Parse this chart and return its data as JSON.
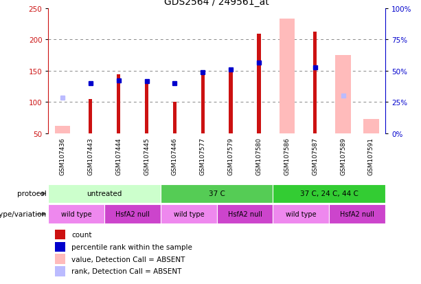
{
  "title": "GDS2564 / 249561_at",
  "samples": [
    "GSM107436",
    "GSM107443",
    "GSM107444",
    "GSM107445",
    "GSM107446",
    "GSM107577",
    "GSM107579",
    "GSM107580",
    "GSM107586",
    "GSM107587",
    "GSM107589",
    "GSM107591"
  ],
  "count_values": [
    null,
    105,
    144,
    133,
    100,
    148,
    152,
    209,
    null,
    212,
    null,
    null
  ],
  "rank_values": [
    null,
    130,
    135,
    133,
    130,
    148,
    152,
    163,
    null,
    155,
    null,
    null
  ],
  "absent_rank_dots": [
    107,
    null,
    null,
    null,
    null,
    null,
    null,
    null,
    null,
    null,
    110,
    null
  ],
  "absent_value_bars": [
    62,
    null,
    null,
    null,
    null,
    null,
    null,
    null,
    233,
    null,
    175,
    73
  ],
  "protocol_groups": [
    {
      "label": "untreated",
      "start": 0,
      "end": 4,
      "color": "#ccffcc"
    },
    {
      "label": "37 C",
      "start": 4,
      "end": 8,
      "color": "#55cc55"
    },
    {
      "label": "37 C, 24 C, 44 C",
      "start": 8,
      "end": 12,
      "color": "#33cc33"
    }
  ],
  "genotype_groups": [
    {
      "label": "wild type",
      "start": 0,
      "end": 2,
      "color": "#ee88ee"
    },
    {
      "label": "HsfA2 null",
      "start": 2,
      "end": 4,
      "color": "#cc44cc"
    },
    {
      "label": "wild type",
      "start": 4,
      "end": 6,
      "color": "#ee88ee"
    },
    {
      "label": "HsfA2 null",
      "start": 6,
      "end": 8,
      "color": "#cc44cc"
    },
    {
      "label": "wild type",
      "start": 8,
      "end": 10,
      "color": "#ee88ee"
    },
    {
      "label": "HsfA2 null",
      "start": 10,
      "end": 12,
      "color": "#cc44cc"
    }
  ],
  "ylim_left": [
    50,
    250
  ],
  "ylim_right": [
    0,
    100
  ],
  "yticks_left": [
    50,
    100,
    150,
    200,
    250
  ],
  "yticks_right": [
    0,
    25,
    50,
    75,
    100
  ],
  "yticklabels_right": [
    "0%",
    "25%",
    "50%",
    "75%",
    "100%"
  ],
  "color_count": "#cc1111",
  "color_rank": "#0000cc",
  "color_absent_val": "#ffbbbb",
  "color_absent_rank": "#bbbbff",
  "grid_color": "#888888",
  "bg_table": "#bbbbbb",
  "legend": [
    {
      "label": "count",
      "color": "#cc1111"
    },
    {
      "label": "percentile rank within the sample",
      "color": "#0000cc"
    },
    {
      "label": "value, Detection Call = ABSENT",
      "color": "#ffbbbb"
    },
    {
      "label": "rank, Detection Call = ABSENT",
      "color": "#bbbbff"
    }
  ]
}
